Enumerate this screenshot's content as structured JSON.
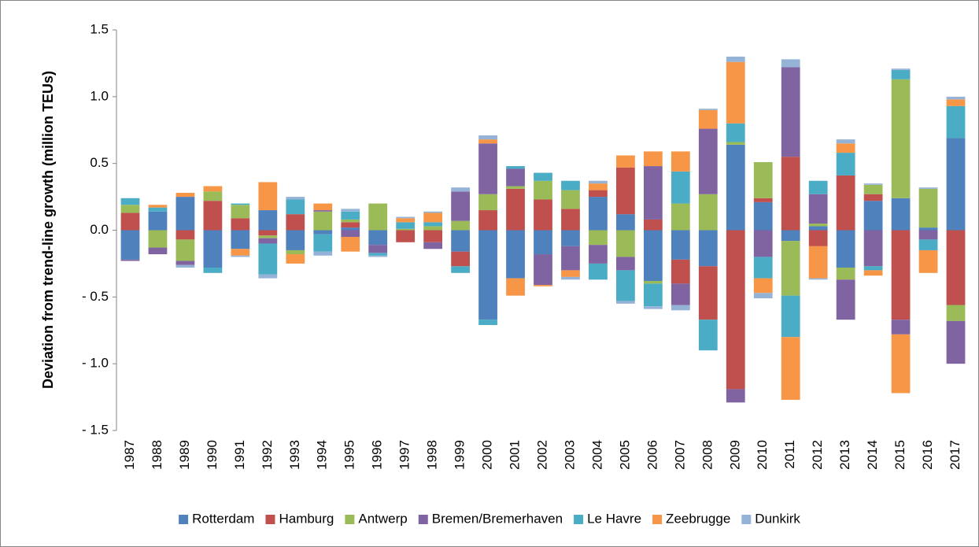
{
  "chart_data": {
    "type": "stacked_bar",
    "y_label": "Deviation from trend-line growth (million TEUs)",
    "categories": [
      "1987",
      "1988",
      "1989",
      "1990",
      "1991",
      "1992",
      "1993",
      "1994",
      "1995",
      "1996",
      "1997",
      "1998",
      "1999",
      "2000",
      "2001",
      "2002",
      "2003",
      "2004",
      "2005",
      "2006",
      "2007",
      "2008",
      "2009",
      "2010",
      "2011",
      "2012",
      "2013",
      "2014",
      "2015",
      "2016",
      "2017"
    ],
    "series": [
      {
        "name": "Rotterdam",
        "color": "#4f81bd",
        "values": [
          -0.22,
          0.14,
          0.25,
          -0.28,
          -0.14,
          0.15,
          -0.15,
          -0.03,
          0.02,
          -0.11,
          0,
          0,
          -0.16,
          -0.67,
          -0.36,
          -0.18,
          -0.12,
          0.25,
          0.12,
          -0.38,
          -0.22,
          -0.27,
          0.64,
          0.21,
          -0.08,
          0.03,
          -0.28,
          0.22,
          0.24,
          0.02,
          0.69
        ]
      },
      {
        "name": "Hamburg",
        "color": "#c0504d",
        "values": [
          0.13,
          0,
          -0.07,
          0.22,
          0.09,
          -0.04,
          0.12,
          0,
          0.04,
          0,
          -0.09,
          -0.09,
          -0.11,
          0.15,
          0.31,
          0.23,
          0.16,
          0.05,
          0.35,
          0.08,
          -0.18,
          -0.4,
          -1.19,
          0.03,
          0.55,
          -0.12,
          0.41,
          0.05,
          -0.67,
          0,
          -0.56
        ]
      },
      {
        "name": "Antwerp",
        "color": "#9bbb59",
        "values": [
          0.06,
          -0.13,
          -0.16,
          0.07,
          0.1,
          -0.02,
          -0.03,
          0.14,
          0.02,
          0.2,
          0.01,
          0.03,
          0.07,
          0.12,
          0.02,
          0.14,
          0.14,
          -0.11,
          -0.2,
          -0.02,
          0.2,
          0.27,
          0.02,
          0.27,
          -0.41,
          0.02,
          -0.09,
          0.07,
          0.89,
          0.29,
          -0.12
        ]
      },
      {
        "name": "Bremen/Bremerhaven",
        "color": "#8064a2",
        "values": [
          -0.01,
          -0.05,
          -0.03,
          0,
          0,
          -0.04,
          0,
          0.01,
          -0.05,
          -0.06,
          0,
          -0.05,
          0.22,
          0.38,
          0.13,
          -0.23,
          -0.18,
          -0.14,
          -0.1,
          0.4,
          -0.16,
          0.49,
          -0.1,
          -0.2,
          0.67,
          0.22,
          -0.3,
          -0.27,
          -0.11,
          -0.07,
          -0.32
        ]
      },
      {
        "name": "Le Havre",
        "color": "#4bacc6",
        "values": [
          0.05,
          0.03,
          0,
          -0.04,
          0.01,
          -0.23,
          0.11,
          -0.13,
          0.06,
          -0.02,
          0.05,
          0.03,
          -0.05,
          -0.04,
          0.02,
          0.06,
          0.07,
          -0.12,
          -0.23,
          -0.17,
          0.24,
          -0.23,
          0.14,
          -0.16,
          -0.31,
          0.1,
          0.17,
          -0.03,
          0.07,
          -0.08,
          0.24
        ]
      },
      {
        "name": "Zeebrugge",
        "color": "#f79646",
        "values": [
          0,
          0.02,
          0.03,
          0.04,
          -0.05,
          0.21,
          -0.07,
          0.05,
          -0.11,
          0,
          0.03,
          0.07,
          0,
          0.03,
          -0.13,
          -0.01,
          -0.05,
          0.05,
          0.09,
          0.11,
          0.15,
          0.14,
          0.46,
          -0.11,
          -0.47,
          -0.24,
          0.07,
          -0.04,
          -0.44,
          -0.17,
          0.05
        ]
      },
      {
        "name": "Dunkirk",
        "color": "#95b3d7",
        "values": [
          0,
          0,
          -0.02,
          0,
          -0.01,
          -0.03,
          0.02,
          -0.03,
          0.02,
          -0.01,
          0.01,
          0.01,
          0.03,
          0.03,
          0,
          0,
          -0.02,
          0.02,
          -0.02,
          -0.02,
          -0.04,
          0.01,
          0.04,
          -0.04,
          0.06,
          -0.01,
          0.03,
          0.01,
          0.01,
          0.01,
          0.02
        ]
      }
    ],
    "ylim": [
      -1.5,
      1.5
    ],
    "yticks": [
      1.5,
      {
        "value": 1,
        "label": "1.0"
      },
      0.5,
      {
        "value": 0,
        "label": "0.0"
      },
      {
        "value": -0.5,
        "label": "- 0.5"
      },
      {
        "value": -1,
        "label": "- 1.0"
      },
      {
        "value": -1.5,
        "label": "- 1.5"
      }
    ],
    "grid": false,
    "legend": "bottom"
  }
}
